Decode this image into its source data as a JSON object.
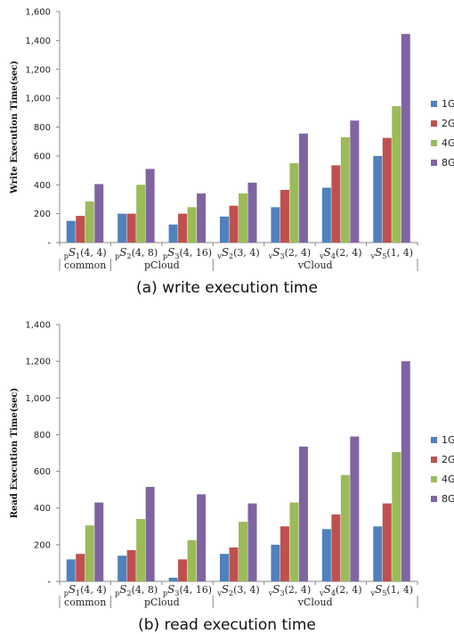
{
  "colors": {
    "1G": "#4f81bd",
    "2G": "#c0504d",
    "4G": "#9bbb59",
    "8G": "#8064a2"
  },
  "chart_data": [
    {
      "type": "bar",
      "caption": "(a) write execution time",
      "ylabel": "Write Execution Time(sec)",
      "ylim": [
        0,
        1600
      ],
      "yticks": [
        "-",
        "200",
        "400",
        "600",
        "800",
        "1,000",
        "1,200",
        "1,400",
        "1,600"
      ],
      "categories": [
        "pS1(4,4)",
        "pS2(4,8)",
        "pS3(4,16)",
        "vS2(3,4)",
        "vS3(2,4)",
        "vS4(2,4)",
        "vS5(1,4)"
      ],
      "category_labels": [
        {
          "pre": "p",
          "s": "S",
          "n": "1",
          "args": "(4, 4)"
        },
        {
          "pre": "p",
          "s": "S",
          "n": "2",
          "args": "(4, 8)"
        },
        {
          "pre": "p",
          "s": "S",
          "n": "3",
          "args": "(4, 16)"
        },
        {
          "pre": "v",
          "s": "S",
          "n": "2",
          "args": "(3, 4)"
        },
        {
          "pre": "v",
          "s": "S",
          "n": "3",
          "args": "(2, 4)"
        },
        {
          "pre": "v",
          "s": "S",
          "n": "4",
          "args": "(2, 4)"
        },
        {
          "pre": "v",
          "s": "S",
          "n": "5",
          "args": "(1, 4)"
        }
      ],
      "groups": [
        {
          "label": "common",
          "from": 0,
          "to": 0
        },
        {
          "label": "pCloud",
          "from": 1,
          "to": 2
        },
        {
          "label": "vCloud",
          "from": 3,
          "to": 6
        }
      ],
      "series": [
        {
          "name": "1G",
          "values": [
            150,
            200,
            125,
            180,
            245,
            380,
            600
          ]
        },
        {
          "name": "2G",
          "values": [
            185,
            200,
            200,
            255,
            365,
            535,
            725
          ]
        },
        {
          "name": "4G",
          "values": [
            285,
            400,
            245,
            340,
            550,
            730,
            945
          ]
        },
        {
          "name": "8G",
          "values": [
            405,
            510,
            340,
            415,
            755,
            845,
            1445
          ]
        }
      ],
      "legend_position": "right"
    },
    {
      "type": "bar",
      "caption": "(b) read execution time",
      "ylabel": "Read Execution Time(sec)",
      "ylim": [
        0,
        1400
      ],
      "yticks": [
        "-",
        "200",
        "400",
        "600",
        "800",
        "1,000",
        "1,200",
        "1,400"
      ],
      "categories": [
        "pS1(4,4)",
        "pS2(4,8)",
        "pS3(4,16)",
        "vS2(3,4)",
        "vS3(2,4)",
        "vS4(2,4)",
        "vS5(1,4)"
      ],
      "category_labels": [
        {
          "pre": "p",
          "s": "S",
          "n": "1",
          "args": "(4, 4)"
        },
        {
          "pre": "p",
          "s": "S",
          "n": "2",
          "args": "(4, 8)"
        },
        {
          "pre": "p",
          "s": "S",
          "n": "3",
          "args": "(4, 16)"
        },
        {
          "pre": "v",
          "s": "S",
          "n": "2",
          "args": "(3, 4)"
        },
        {
          "pre": "v",
          "s": "S",
          "n": "3",
          "args": "(2, 4)"
        },
        {
          "pre": "v",
          "s": "S",
          "n": "4",
          "args": "(2, 4)"
        },
        {
          "pre": "v",
          "s": "S",
          "n": "5",
          "args": "(1, 4)"
        }
      ],
      "groups": [
        {
          "label": "common",
          "from": 0,
          "to": 0
        },
        {
          "label": "pCloud",
          "from": 1,
          "to": 2
        },
        {
          "label": "vCloud",
          "from": 3,
          "to": 6
        }
      ],
      "series": [
        {
          "name": "1G",
          "values": [
            120,
            140,
            20,
            150,
            200,
            285,
            300
          ]
        },
        {
          "name": "2G",
          "values": [
            150,
            170,
            120,
            185,
            300,
            365,
            425
          ]
        },
        {
          "name": "4G",
          "values": [
            305,
            340,
            225,
            325,
            430,
            580,
            705
          ]
        },
        {
          "name": "8G",
          "values": [
            430,
            515,
            475,
            425,
            735,
            790,
            1200
          ]
        }
      ],
      "legend_position": "right"
    }
  ]
}
